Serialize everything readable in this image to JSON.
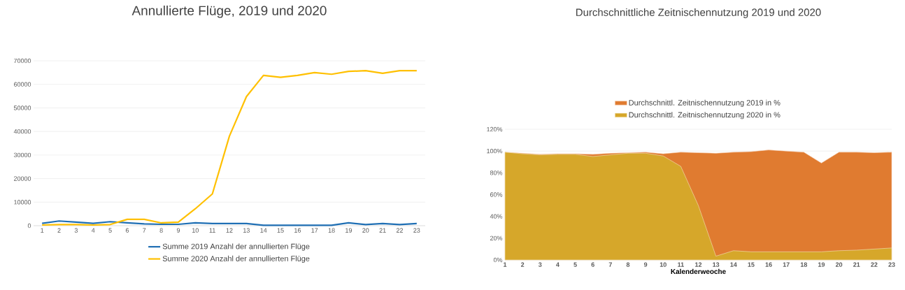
{
  "chart_data": [
    {
      "type": "line",
      "title": "Annullierte Flüge, 2019 und 2020",
      "categories": [
        "1",
        "2",
        "3",
        "4",
        "5",
        "6",
        "7",
        "8",
        "9",
        "10",
        "11",
        "12",
        "13",
        "14",
        "15",
        "16",
        "17",
        "18",
        "19",
        "20",
        "21",
        "22",
        "23"
      ],
      "series": [
        {
          "name": "Summe 2019 Anzahl der annullierten Flüge",
          "color": "#1f6fb4",
          "values": [
            1000,
            2000,
            1500,
            1000,
            1700,
            1200,
            800,
            600,
            600,
            1200,
            900,
            900,
            900,
            200,
            200,
            200,
            200,
            200,
            1200,
            500,
            900,
            500,
            900
          ]
        },
        {
          "name": "Summe 2020 Anzahl der annullierten Flüge",
          "color": "#ffc000",
          "values": [
            300,
            500,
            500,
            300,
            500,
            2700,
            2700,
            1200,
            1500,
            7200,
            13500,
            38000,
            54800,
            63800,
            63000,
            63800,
            65000,
            64300,
            65500,
            65800,
            64700,
            65800,
            65800
          ]
        }
      ],
      "ylim": [
        0,
        70000
      ],
      "yticks": [
        0,
        10000,
        20000,
        30000,
        40000,
        50000,
        60000,
        70000
      ],
      "grid": "y",
      "legend": "bottom"
    },
    {
      "type": "area",
      "title": "Durchschnittliche Zeitnischennutzung 2019 und 2020",
      "xlabel": "Kalenderweoche",
      "categories": [
        "1",
        "2",
        "3",
        "4",
        "5",
        "6",
        "7",
        "8",
        "9",
        "10",
        "11",
        "12",
        "13",
        "14",
        "15",
        "16",
        "17",
        "18",
        "19",
        "20",
        "21",
        "22",
        "23"
      ],
      "series": [
        {
          "name": "Durchschnittl. Zeitnischennutzung 2019 in %",
          "color": "#e07b30",
          "values": [
            99,
            98,
            97,
            97.5,
            97.5,
            97,
            98,
            98.5,
            99,
            97.5,
            99,
            98.5,
            98,
            99,
            99.5,
            101,
            100,
            99,
            89,
            99,
            99,
            98.5,
            99
          ]
        },
        {
          "name": "Durchschnittl. Zeitnischennutzung 2020 in %",
          "color": "#d6a72a",
          "values": [
            99,
            97.5,
            96.5,
            97,
            97,
            95,
            96.5,
            98,
            98,
            95.5,
            86,
            50,
            3.5,
            8.5,
            7.5,
            7.5,
            7.5,
            7.5,
            7.5,
            8.5,
            9,
            10,
            11
          ]
        }
      ],
      "ylim": [
        0,
        120
      ],
      "yticks": [
        {
          "value": 0,
          "label": "0%"
        },
        {
          "value": 20,
          "label": "20%"
        },
        {
          "value": 40,
          "label": "40%"
        },
        {
          "value": 60,
          "label": "60%"
        },
        {
          "value": 80,
          "label": "80%"
        },
        {
          "value": 100,
          "label": "100%"
        },
        {
          "value": 120,
          "label": "120%"
        }
      ],
      "grid": "y",
      "legend": "top"
    }
  ]
}
